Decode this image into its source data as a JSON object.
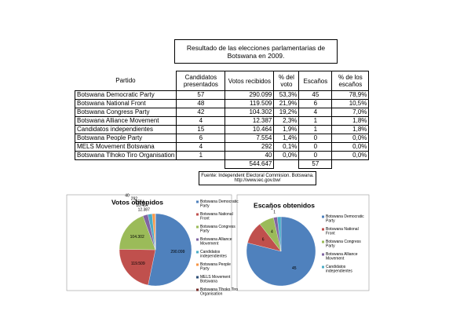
{
  "title": "Resultado de las elecciones parlamentarias de Botswana en 2009.",
  "table": {
    "header": [
      "Partido",
      "Candidatos presentados",
      "Votos recibidos",
      "% del voto",
      "Escaños",
      "% de los escaños"
    ],
    "rows": [
      [
        "Botswana Democratic Party",
        "57",
        "290.099",
        "53,3%",
        "45",
        "78,9%"
      ],
      [
        "Botswana National Front",
        "48",
        "119.509",
        "21,9%",
        "6",
        "10,5%"
      ],
      [
        "Botswana Congress Party",
        "42",
        "104.302",
        "19,2%",
        "4",
        "7,0%"
      ],
      [
        "Botswana Alliance Movement",
        "4",
        "12.387",
        "2,3%",
        "1",
        "1,8%"
      ],
      [
        "Candidatos independientes",
        "15",
        "10.464",
        "1,9%",
        "1",
        "1,8%"
      ],
      [
        "Botswana People Party",
        "6",
        "7.554",
        "1,4%",
        "0",
        "0,0%"
      ],
      [
        "MELS Movement Botswana",
        "4",
        "292",
        "0,1%",
        "0",
        "0,0%"
      ],
      [
        "Botswana Tlhoko Tiro Organisation",
        "1",
        "40",
        "0,0%",
        "0",
        "0,0%"
      ]
    ],
    "totals": {
      "votes": "544.647",
      "seats": "57"
    }
  },
  "source": [
    "Fuente: Independent Electoral Commision. Botswana.",
    "http://www.iec.gov.bw/"
  ],
  "chart_data": [
    {
      "type": "pie",
      "title": "Votos obtenidos",
      "categories": [
        "Botswana Democratic Party",
        "Botswana National Front",
        "Botswana Congress Party",
        "Botswana Alliance Movement",
        "Candidatos independientes",
        "Botswana People Party",
        "MELS Movement Botswana",
        "Botswana Tlhoko Tiro Organisation"
      ],
      "values": [
        290099,
        119509,
        104302,
        12387,
        10464,
        7554,
        292,
        40
      ],
      "value_labels": [
        "290.099",
        "119.509",
        "104.302",
        "12.387",
        "10.464",
        "7.554",
        "292",
        "40"
      ],
      "colors": [
        "#4f81bd",
        "#c0504d",
        "#9bbb59",
        "#8064a2",
        "#4bacc6",
        "#f79646",
        "#2c4d75",
        "#772c2a"
      ]
    },
    {
      "type": "pie",
      "title": "Escaños obtenidos",
      "categories": [
        "Botswana Democratic Party",
        "Botswana National Front",
        "Botswana Congress Party",
        "Botswana Alliance Movement",
        "Candidatos independientes"
      ],
      "values": [
        45,
        6,
        4,
        1,
        1
      ],
      "colors": [
        "#4f81bd",
        "#c0504d",
        "#9bbb59",
        "#8064a2",
        "#4bacc6"
      ]
    }
  ]
}
